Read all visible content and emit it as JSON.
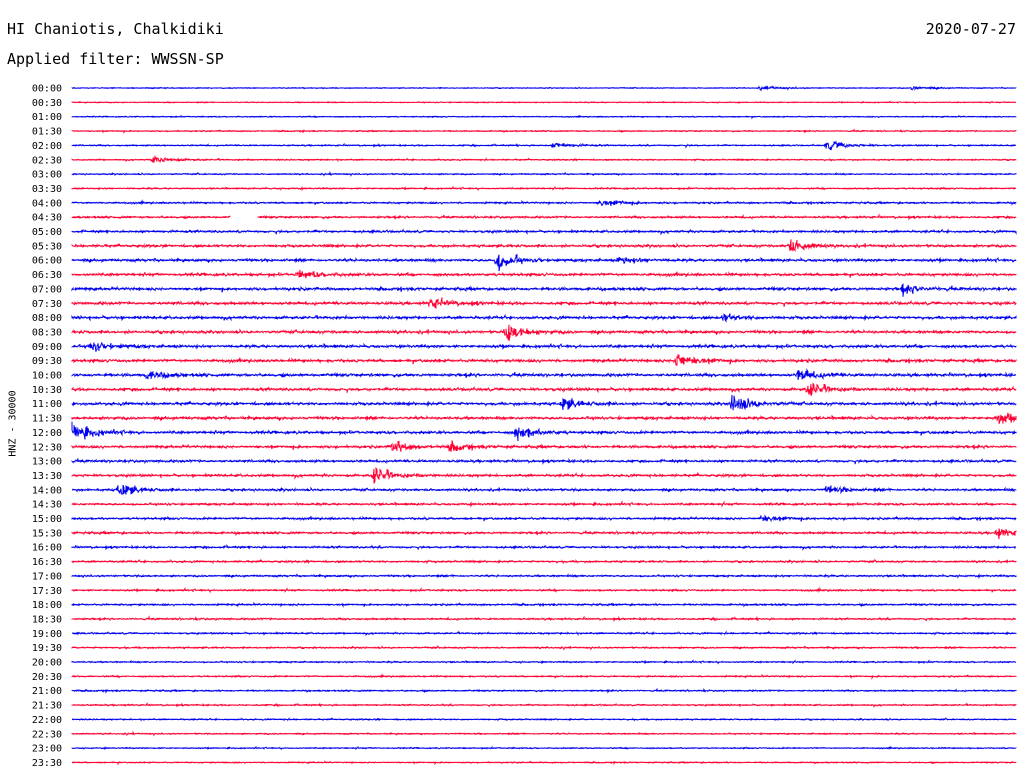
{
  "header": {
    "station": "HI Chaniotis, Chalkidiki",
    "date": "2020-07-27",
    "filter_label": "Applied filter:",
    "filter_value": "WWSSN-SP",
    "channel_label": "HNZ - 30000"
  },
  "colors": {
    "blue": "#0000ee",
    "red": "#ff0033",
    "text": "#000000",
    "background": "#ffffff"
  },
  "chart_data": {
    "type": "helicorder",
    "title": "HI Chaniotis, Chalkidiki",
    "subtitle": "Applied filter: WWSSN-SP",
    "ylabel": "HNZ - 30000",
    "xlabel": "",
    "grid": false,
    "legend": "none",
    "row_colors_alternate": [
      "blue",
      "red"
    ],
    "row_labels": [
      "00:00",
      "00:30",
      "01:00",
      "01:30",
      "02:00",
      "02:30",
      "03:00",
      "03:30",
      "04:00",
      "04:30",
      "05:00",
      "05:30",
      "06:00",
      "06:30",
      "07:00",
      "07:30",
      "08:00",
      "08:30",
      "09:00",
      "09:30",
      "10:00",
      "10:30",
      "11:00",
      "11:30",
      "12:00",
      "12:30",
      "13:00",
      "13:30",
      "14:00",
      "14:30",
      "15:00",
      "15:30",
      "16:00",
      "16:30",
      "17:00",
      "17:30",
      "18:00",
      "18:30",
      "19:00",
      "19:30",
      "20:00",
      "20:30",
      "21:00",
      "21:30",
      "22:00",
      "22:30",
      "23:00",
      "23:30"
    ],
    "row_noise_level": [
      0.3,
      0.3,
      0.35,
      0.4,
      0.45,
      0.45,
      0.45,
      0.5,
      0.6,
      0.7,
      0.8,
      0.9,
      0.95,
      0.95,
      1.0,
      1.0,
      1.0,
      1.0,
      1.0,
      1.0,
      1.0,
      1.0,
      1.0,
      1.0,
      0.95,
      0.9,
      0.85,
      0.85,
      0.8,
      0.75,
      0.75,
      0.75,
      0.7,
      0.65,
      0.65,
      0.6,
      0.6,
      0.6,
      0.55,
      0.55,
      0.5,
      0.5,
      0.5,
      0.5,
      0.45,
      0.45,
      0.4,
      0.4
    ],
    "gaps": [
      {
        "row": "04:30",
        "start_fraction": 0.168,
        "end_fraction": 0.197
      }
    ],
    "events": [
      {
        "row": "00:00",
        "position_fraction": 0.73,
        "amplitude": 2
      },
      {
        "row": "00:00",
        "position_fraction": 0.89,
        "amplitude": 2
      },
      {
        "row": "02:00",
        "position_fraction": 0.8,
        "amplitude": 6
      },
      {
        "row": "02:00",
        "position_fraction": 0.51,
        "amplitude": 3
      },
      {
        "row": "02:30",
        "position_fraction": 0.085,
        "amplitude": 4
      },
      {
        "row": "04:00",
        "position_fraction": 0.56,
        "amplitude": 4
      },
      {
        "row": "05:30",
        "position_fraction": 0.76,
        "amplitude": 9
      },
      {
        "row": "06:00",
        "position_fraction": 0.45,
        "amplitude": 11
      },
      {
        "row": "06:00",
        "position_fraction": 0.58,
        "amplitude": 4
      },
      {
        "row": "06:30",
        "position_fraction": 0.24,
        "amplitude": 5
      },
      {
        "row": "07:00",
        "position_fraction": 0.88,
        "amplitude": 5
      },
      {
        "row": "07:30",
        "position_fraction": 0.38,
        "amplitude": 6
      },
      {
        "row": "08:00",
        "position_fraction": 0.69,
        "amplitude": 4
      },
      {
        "row": "08:30",
        "position_fraction": 0.46,
        "amplitude": 10
      },
      {
        "row": "09:00",
        "position_fraction": 0.02,
        "amplitude": 6
      },
      {
        "row": "09:30",
        "position_fraction": 0.64,
        "amplitude": 10
      },
      {
        "row": "10:00",
        "position_fraction": 0.08,
        "amplitude": 5
      },
      {
        "row": "10:00",
        "position_fraction": 0.77,
        "amplitude": 7
      },
      {
        "row": "10:30",
        "position_fraction": 0.78,
        "amplitude": 8
      },
      {
        "row": "11:00",
        "position_fraction": 0.52,
        "amplitude": 7
      },
      {
        "row": "11:00",
        "position_fraction": 0.7,
        "amplitude": 10
      },
      {
        "row": "11:30",
        "position_fraction": 0.98,
        "amplitude": 7
      },
      {
        "row": "12:00",
        "position_fraction": 0.0,
        "amplitude": 12
      },
      {
        "row": "12:00",
        "position_fraction": 0.47,
        "amplitude": 8
      },
      {
        "row": "12:30",
        "position_fraction": 0.34,
        "amplitude": 6
      },
      {
        "row": "12:30",
        "position_fraction": 0.4,
        "amplitude": 5
      },
      {
        "row": "13:30",
        "position_fraction": 0.32,
        "amplitude": 9
      },
      {
        "row": "14:00",
        "position_fraction": 0.05,
        "amplitude": 8
      },
      {
        "row": "14:00",
        "position_fraction": 0.8,
        "amplitude": 4
      },
      {
        "row": "15:00",
        "position_fraction": 0.73,
        "amplitude": 4
      },
      {
        "row": "15:30",
        "position_fraction": 0.98,
        "amplitude": 5
      }
    ]
  }
}
